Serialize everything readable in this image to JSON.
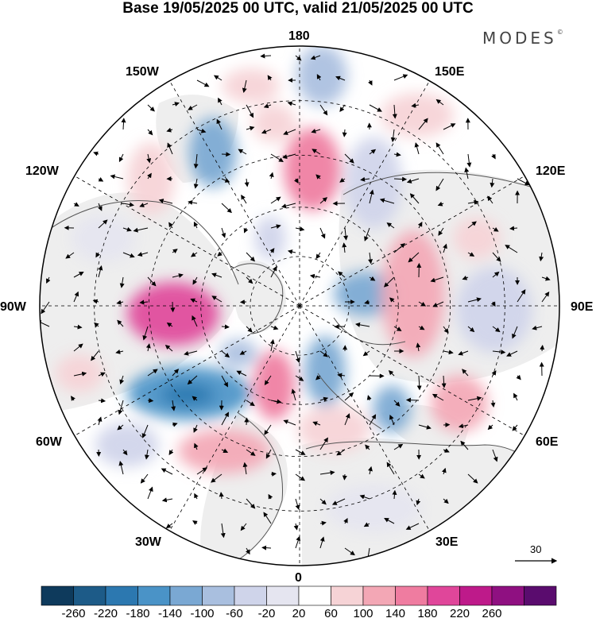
{
  "header": {
    "title": "Base 19/05/2025 00 UTC, valid 21/05/2025 00 UTC",
    "brand": "MODES",
    "brand_mark": "©"
  },
  "map": {
    "projection": "north-polar-stereographic",
    "center": "North Pole",
    "meridian_labels": {
      "m180": "180",
      "m150e": "150E",
      "m120e": "120E",
      "m90e": "90E",
      "m60e": "60E",
      "m30e": "30E",
      "m0": "0",
      "m30w": "30W",
      "m60w": "60W",
      "m90w": "90W",
      "m120w": "120W",
      "m150w": "150W"
    },
    "graticule": "dashed lines every 30° of longitude and 15° of latitude",
    "land_color": "#eeeeee",
    "coastline_color": "#555555",
    "vector_reference": "30"
  },
  "colorbar": {
    "levels": [
      "-260",
      "-220",
      "-180",
      "-140",
      "-100",
      "-60",
      "-20",
      "20",
      "60",
      "100",
      "140",
      "180",
      "220",
      "260"
    ],
    "colors": [
      "#0e3a5c",
      "#1d5b88",
      "#2c78b0",
      "#4a93c7",
      "#7aa8d3",
      "#a9bfdf",
      "#cfd4ea",
      "#e5e5f0",
      "#ffffff",
      "#f6d3d6",
      "#f3a7b5",
      "#ef7ca0",
      "#e0469a",
      "#be1a8a",
      "#8f1081",
      "#5a0c6e"
    ]
  }
}
